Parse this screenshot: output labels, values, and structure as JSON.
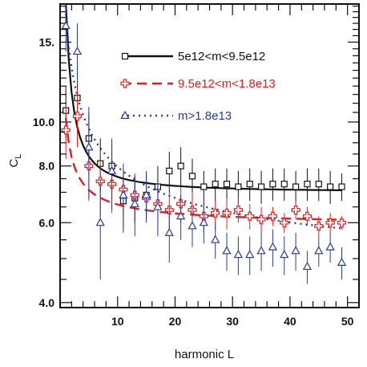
{
  "chart_data": {
    "type": "scatter",
    "xlabel": "harmonic L",
    "ylabel": "C_L",
    "ylabel_main": "C",
    "ylabel_sub": "L",
    "xlim": [
      0,
      52
    ],
    "ylim": [
      3.9,
      18.2
    ],
    "yscale": "log",
    "x_ticks": [
      10,
      20,
      30,
      40,
      50
    ],
    "x_tick_labels": [
      "10",
      "20",
      "30",
      "40",
      "50"
    ],
    "y_ticks": [
      4,
      6,
      8,
      10,
      15
    ],
    "y_tick_labels": [
      "4.0",
      "6.0",
      "8.0",
      "10.0",
      "15."
    ],
    "grid": false,
    "legend_position": "top-right",
    "series": [
      {
        "name": "5e12<m<9.5e12",
        "color": "#111111",
        "marker": "square",
        "line_style": "solid",
        "fit": {
          "a": 7.0,
          "b": 11.4,
          "p": 1.3
        },
        "x": [
          1,
          3,
          5,
          7,
          9,
          11,
          13,
          15,
          17,
          19,
          21,
          23,
          25,
          27,
          29,
          31,
          33,
          35,
          37,
          39,
          41,
          43,
          45,
          47,
          49
        ],
        "y": [
          10.6,
          11.3,
          9.2,
          8.1,
          8.0,
          6.7,
          6.8,
          6.9,
          7.2,
          7.8,
          8.0,
          7.6,
          7.2,
          7.3,
          7.3,
          7.2,
          7.3,
          7.2,
          7.3,
          7.3,
          7.2,
          7.3,
          7.3,
          7.2,
          7.2
        ],
        "err": [
          1.4,
          1.5,
          1.3,
          1.1,
          1.0,
          0.9,
          0.8,
          0.8,
          0.8,
          0.8,
          0.8,
          0.7,
          0.6,
          0.6,
          0.6,
          0.6,
          0.6,
          0.6,
          0.6,
          0.6,
          0.6,
          0.6,
          0.6,
          0.6,
          0.5
        ]
      },
      {
        "name": "9.5e12<m<1.8e13",
        "color": "#e02020",
        "marker": "plus",
        "line_style": "dashed",
        "fit": {
          "a": 5.9,
          "b": 4.3,
          "p": 0.8
        },
        "x": [
          1,
          3,
          5,
          7,
          9,
          11,
          13,
          15,
          17,
          19,
          21,
          23,
          25,
          27,
          29,
          31,
          33,
          35,
          37,
          39,
          41,
          43,
          45,
          47,
          49
        ],
        "y": [
          9.6,
          10.3,
          8.0,
          7.4,
          7.3,
          7.1,
          6.9,
          6.8,
          6.6,
          6.4,
          6.6,
          6.4,
          6.2,
          6.3,
          6.3,
          6.4,
          6.2,
          6.1,
          6.2,
          6.0,
          6.4,
          6.2,
          5.9,
          6.0,
          6.0
        ],
        "err": [
          1.3,
          1.5,
          1.3,
          1.2,
          1.0,
          0.8,
          0.8,
          0.7,
          0.7,
          0.6,
          0.6,
          0.6,
          0.5,
          0.5,
          0.5,
          0.4,
          0.4,
          0.4,
          0.3,
          0.3,
          0.3,
          0.3,
          0.3,
          0.3,
          0.2
        ]
      },
      {
        "name": "m>1.8e13",
        "color": "#2a3a9a",
        "marker": "triangle",
        "line_style": "dotted",
        "fit": {
          "a": 4.3,
          "b": 13.0,
          "p": 0.55
        },
        "x": [
          1,
          3,
          5,
          7,
          9,
          11,
          13,
          15,
          17,
          19,
          21,
          23,
          25,
          27,
          29,
          31,
          33,
          35,
          37,
          39,
          41,
          43,
          45,
          47,
          49
        ],
        "y": [
          16.3,
          14.3,
          8.8,
          6.0,
          7.8,
          6.9,
          6.6,
          6.9,
          6.5,
          5.7,
          6.2,
          5.9,
          6.0,
          5.5,
          5.2,
          5.1,
          5.1,
          5.2,
          5.3,
          5.1,
          5.2,
          4.8,
          5.2,
          5.3,
          4.9
        ],
        "err": [
          2.0,
          2.2,
          2.0,
          1.5,
          1.4,
          1.2,
          1.0,
          0.9,
          0.9,
          0.8,
          0.7,
          0.6,
          0.6,
          0.5,
          0.5,
          0.5,
          0.5,
          0.5,
          0.5,
          0.5,
          0.5,
          0.4,
          0.4,
          0.4,
          0.4
        ]
      }
    ]
  }
}
